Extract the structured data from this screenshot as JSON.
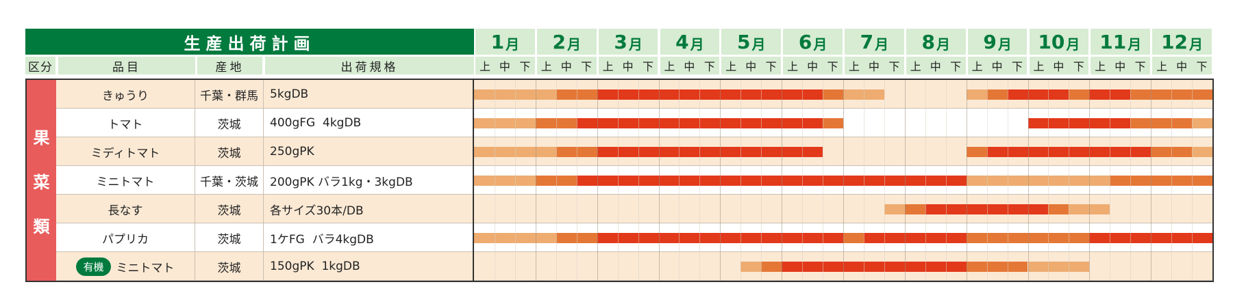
{
  "chart_data": {
    "type": "gantt",
    "title": "生産出荷計画",
    "columns": {
      "category": "区分",
      "item": "品目",
      "origin": "産地",
      "spec": "出荷規格"
    },
    "months": [
      "1月",
      "2月",
      "3月",
      "4月",
      "5月",
      "6月",
      "7月",
      "8月",
      "9月",
      "10月",
      "11月",
      "12月"
    ],
    "dekads": [
      "上",
      "中",
      "下"
    ],
    "category_label": "果菜類",
    "legend_levels": {
      "light": "#eeac70",
      "medium": "#e57736",
      "peak": "#e2391a"
    },
    "rows": [
      {
        "item": "きゅうり",
        "origin": "千葉・群馬",
        "spec": "5kgDB",
        "badge": "",
        "segments": [
          {
            "start": 0,
            "end": 4,
            "level": "light"
          },
          {
            "start": 4,
            "end": 6,
            "level": "medium"
          },
          {
            "start": 6,
            "end": 17,
            "level": "peak"
          },
          {
            "start": 17,
            "end": 18,
            "level": "medium"
          },
          {
            "start": 18,
            "end": 20,
            "level": "light"
          },
          {
            "start": 24,
            "end": 25,
            "level": "light"
          },
          {
            "start": 25,
            "end": 26,
            "level": "medium"
          },
          {
            "start": 26,
            "end": 29,
            "level": "peak"
          },
          {
            "start": 29,
            "end": 30,
            "level": "medium"
          },
          {
            "start": 30,
            "end": 32,
            "level": "peak"
          },
          {
            "start": 32,
            "end": 36,
            "level": "medium"
          }
        ]
      },
      {
        "item": "トマト",
        "origin": "茨城",
        "spec": "400gFG  4kgDB",
        "badge": "",
        "segments": [
          {
            "start": 0,
            "end": 3,
            "level": "light"
          },
          {
            "start": 3,
            "end": 5,
            "level": "medium"
          },
          {
            "start": 5,
            "end": 17,
            "level": "peak"
          },
          {
            "start": 17,
            "end": 18,
            "level": "medium"
          },
          {
            "start": 27,
            "end": 32,
            "level": "peak"
          },
          {
            "start": 32,
            "end": 35,
            "level": "medium"
          },
          {
            "start": 35,
            "end": 36,
            "level": "light"
          }
        ]
      },
      {
        "item": "ミディトマト",
        "origin": "茨城",
        "spec": "250gPK",
        "badge": "",
        "segments": [
          {
            "start": 0,
            "end": 4,
            "level": "light"
          },
          {
            "start": 4,
            "end": 6,
            "level": "medium"
          },
          {
            "start": 6,
            "end": 17,
            "level": "peak"
          },
          {
            "start": 24,
            "end": 25,
            "level": "medium"
          },
          {
            "start": 25,
            "end": 33,
            "level": "peak"
          },
          {
            "start": 33,
            "end": 35,
            "level": "medium"
          },
          {
            "start": 35,
            "end": 36,
            "level": "light"
          }
        ]
      },
      {
        "item": "ミニトマト",
        "origin": "千葉・茨城",
        "spec": "200gPK バラ1kg・3kgDB",
        "badge": "",
        "segments": [
          {
            "start": 0,
            "end": 3,
            "level": "light"
          },
          {
            "start": 3,
            "end": 5,
            "level": "medium"
          },
          {
            "start": 5,
            "end": 24,
            "level": "peak"
          },
          {
            "start": 24,
            "end": 31,
            "level": "light"
          },
          {
            "start": 31,
            "end": 36,
            "level": "medium"
          }
        ]
      },
      {
        "item": "長なす",
        "origin": "茨城",
        "spec": "各サイズ30本/DB",
        "badge": "",
        "segments": [
          {
            "start": 20,
            "end": 21,
            "level": "light"
          },
          {
            "start": 21,
            "end": 22,
            "level": "medium"
          },
          {
            "start": 22,
            "end": 28,
            "level": "peak"
          },
          {
            "start": 28,
            "end": 29,
            "level": "medium"
          },
          {
            "start": 29,
            "end": 31,
            "level": "light"
          }
        ]
      },
      {
        "item": "パプリカ",
        "origin": "茨城",
        "spec": "1ケFG  バラ4kgDB",
        "badge": "",
        "segments": [
          {
            "start": 0,
            "end": 4,
            "level": "light"
          },
          {
            "start": 4,
            "end": 6,
            "level": "medium"
          },
          {
            "start": 6,
            "end": 18,
            "level": "peak"
          },
          {
            "start": 18,
            "end": 19,
            "level": "medium"
          },
          {
            "start": 19,
            "end": 24,
            "level": "peak"
          },
          {
            "start": 24,
            "end": 30,
            "level": "medium"
          },
          {
            "start": 30,
            "end": 36,
            "level": "peak"
          }
        ]
      },
      {
        "item": "ミニトマト",
        "origin": "茨城",
        "spec": "150gPK  1kgDB",
        "badge": "有機",
        "segments": [
          {
            "start": 13,
            "end": 14,
            "level": "light"
          },
          {
            "start": 14,
            "end": 15,
            "level": "medium"
          },
          {
            "start": 15,
            "end": 24,
            "level": "peak"
          },
          {
            "start": 24,
            "end": 27,
            "level": "medium"
          },
          {
            "start": 27,
            "end": 30,
            "level": "light"
          }
        ]
      }
    ]
  }
}
